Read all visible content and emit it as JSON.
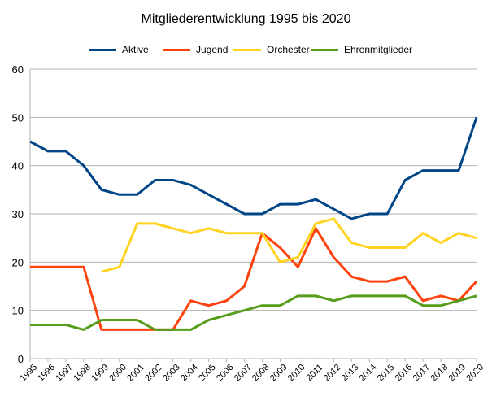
{
  "chart_data": {
    "type": "line",
    "title": "Mitgliederentwicklung 1995 bis 2020",
    "xlabel": "",
    "ylabel": "",
    "ylim": [
      0,
      60
    ],
    "yticks": [
      "0",
      "10",
      "20",
      "30",
      "40",
      "50",
      "60"
    ],
    "categories": [
      "1995",
      "1996",
      "1997",
      "1998",
      "1999",
      "2000",
      "2001",
      "2002",
      "2003",
      "2004",
      "2005",
      "2006",
      "2007",
      "2008",
      "2009",
      "2010",
      "2011",
      "2012",
      "2013",
      "2014",
      "2015",
      "2016",
      "2017",
      "2018",
      "2019",
      "2020"
    ],
    "grid": "horizontal",
    "legend_position": "top",
    "series": [
      {
        "name": "Aktive",
        "color": "#004586",
        "values": [
          45,
          43,
          43,
          40,
          35,
          34,
          34,
          37,
          37,
          36,
          34,
          32,
          30,
          30,
          32,
          32,
          33,
          31,
          29,
          30,
          30,
          37,
          39,
          39,
          39,
          50
        ]
      },
      {
        "name": "Jugend",
        "color": "#ff420e",
        "values": [
          19,
          19,
          19,
          19,
          6,
          6,
          6,
          6,
          6,
          12,
          11,
          12,
          15,
          26,
          23,
          19,
          27,
          21,
          17,
          16,
          16,
          17,
          12,
          13,
          12,
          16
        ]
      },
      {
        "name": "Orchester",
        "color": "#ffd320",
        "values": [
          null,
          null,
          null,
          null,
          18,
          19,
          28,
          28,
          27,
          26,
          27,
          26,
          26,
          26,
          20,
          21,
          28,
          29,
          24,
          23,
          23,
          23,
          26,
          24,
          26,
          25
        ]
      },
      {
        "name": "Ehrenmitglieder",
        "color": "#579d1c",
        "values": [
          7,
          7,
          7,
          6,
          8,
          8,
          8,
          6,
          6,
          6,
          8,
          9,
          10,
          11,
          11,
          13,
          13,
          12,
          13,
          13,
          13,
          13,
          11,
          11,
          12,
          13
        ]
      }
    ]
  }
}
